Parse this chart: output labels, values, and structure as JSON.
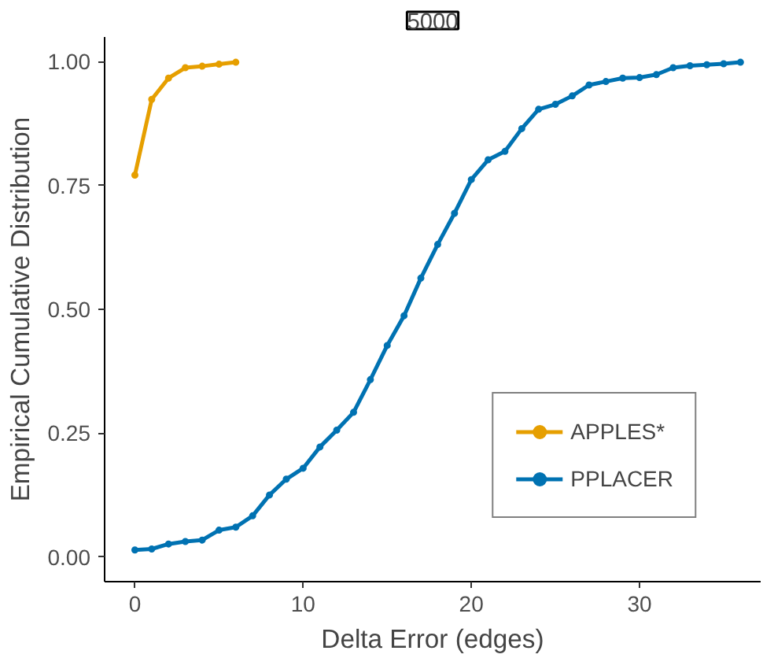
{
  "chart_data": {
    "type": "line",
    "title": "5000",
    "xlabel": "Delta Error (edges)",
    "ylabel": "Empirical Cumulative Distribution",
    "xlim": [
      -1.8,
      37.2
    ],
    "ylim": [
      -0.05,
      1.05
    ],
    "xticks": [
      0,
      10,
      20,
      30
    ],
    "yticks": [
      {
        "value": 0,
        "label": "0.00"
      },
      {
        "value": 0.25,
        "label": "0.25"
      },
      {
        "value": 0.5,
        "label": "0.50"
      },
      {
        "value": 0.75,
        "label": "0.75"
      },
      {
        "value": 1,
        "label": "1.00"
      }
    ],
    "grid": false,
    "legend": "bottom right",
    "marker": "circle",
    "line_style": "solid",
    "series": [
      {
        "name": "APPLES*",
        "color": "#e69f00",
        "x": [
          0,
          1,
          2,
          3,
          4,
          5,
          6
        ],
        "values": [
          0.771,
          0.924,
          0.967,
          0.988,
          0.991,
          0.995,
          0.999
        ]
      },
      {
        "name": "PPLACER",
        "color": "#0072b2",
        "x": [
          0,
          1,
          2,
          3,
          4,
          5,
          6,
          7,
          8,
          9,
          10,
          11,
          12,
          13,
          14,
          15,
          16,
          17,
          18,
          19,
          20,
          21,
          22,
          23,
          24,
          25,
          26,
          27,
          28,
          29,
          30,
          31,
          32,
          33,
          34,
          35,
          36
        ],
        "values": [
          0.014,
          0.016,
          0.026,
          0.031,
          0.034,
          0.054,
          0.06,
          0.083,
          0.125,
          0.157,
          0.179,
          0.222,
          0.256,
          0.292,
          0.358,
          0.427,
          0.487,
          0.563,
          0.631,
          0.694,
          0.762,
          0.802,
          0.819,
          0.865,
          0.904,
          0.914,
          0.931,
          0.953,
          0.96,
          0.967,
          0.968,
          0.974,
          0.988,
          0.992,
          0.994,
          0.996,
          0.999
        ]
      }
    ]
  }
}
